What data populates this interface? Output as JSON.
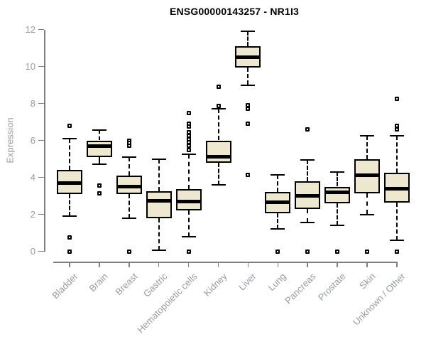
{
  "chart_data": {
    "type": "boxplot",
    "title": "ENSG00000143257 - NR1I3",
    "xlabel": "",
    "ylabel": "Expression",
    "ylim": [
      0,
      12
    ],
    "yticks": [
      0,
      2,
      4,
      6,
      8,
      10,
      12
    ],
    "grid": false,
    "legend": "none",
    "categories": [
      "Bladder",
      "Brain",
      "Breast",
      "Gastric",
      "Hematopoietic cells",
      "Kidney",
      "Liver",
      "Lung",
      "Pancreas",
      "Prostate",
      "Skin",
      "Unknown / Other"
    ],
    "series": [
      {
        "category": "Bladder",
        "whisker_low": 1.9,
        "q1": 3.1,
        "median": 3.7,
        "q3": 4.4,
        "whisker_high": 6.1,
        "outliers": [
          6.8,
          0.75,
          0
        ]
      },
      {
        "category": "Brain",
        "whisker_low": 4.7,
        "q1": 5.1,
        "median": 5.7,
        "q3": 6.0,
        "whisker_high": 6.55,
        "outliers": [
          3.55,
          3.15
        ]
      },
      {
        "category": "Breast",
        "whisker_low": 1.8,
        "q1": 3.1,
        "median": 3.5,
        "q3": 4.1,
        "whisker_high": 5.1,
        "outliers": [
          6.0,
          5.85,
          5.7,
          0
        ]
      },
      {
        "category": "Gastric",
        "whisker_low": 0.05,
        "q1": 1.8,
        "median": 2.75,
        "q3": 3.25,
        "whisker_high": 5.0,
        "outliers": []
      },
      {
        "category": "Hematopoietic cells",
        "whisker_low": 0.8,
        "q1": 2.2,
        "median": 2.7,
        "q3": 3.35,
        "whisker_high": 5.25,
        "outliers": [
          7.5,
          6.9,
          6.75,
          6.45,
          6.25,
          6.05,
          5.9,
          5.7,
          5.5,
          0
        ]
      },
      {
        "category": "Kidney",
        "whisker_low": 3.6,
        "q1": 4.8,
        "median": 5.1,
        "q3": 6.0,
        "whisker_high": 7.7,
        "outliers": [
          8.9,
          7.85
        ]
      },
      {
        "category": "Liver",
        "whisker_low": 9.0,
        "q1": 9.95,
        "median": 10.5,
        "q3": 11.1,
        "whisker_high": 11.9,
        "outliers": [
          7.9,
          7.7,
          6.9,
          4.15
        ]
      },
      {
        "category": "Lung",
        "whisker_low": 1.2,
        "q1": 2.05,
        "median": 2.65,
        "q3": 3.2,
        "whisker_high": 4.15,
        "outliers": [
          0
        ]
      },
      {
        "category": "Pancreas",
        "whisker_low": 1.55,
        "q1": 2.3,
        "median": 3.0,
        "q3": 3.8,
        "whisker_high": 4.95,
        "outliers": [
          6.6,
          0
        ]
      },
      {
        "category": "Prostate",
        "whisker_low": 1.4,
        "q1": 2.6,
        "median": 3.2,
        "q3": 3.5,
        "whisker_high": 4.3,
        "outliers": [
          0
        ]
      },
      {
        "category": "Skin",
        "whisker_low": 2.0,
        "q1": 3.15,
        "median": 4.1,
        "q3": 5.0,
        "whisker_high": 6.25,
        "outliers": [
          0
        ]
      },
      {
        "category": "Unknown / Other",
        "whisker_low": 0.6,
        "q1": 2.65,
        "median": 3.4,
        "q3": 4.25,
        "whisker_high": 6.25,
        "outliers": [
          8.25,
          6.8,
          6.6,
          0
        ]
      }
    ],
    "colors": {
      "box_fill": "#EEE8D1",
      "box_border": "#000000",
      "median": "#000000",
      "axis": "#7f7f7f",
      "tick_text": "#969ba1",
      "title_text": "#000000"
    }
  }
}
